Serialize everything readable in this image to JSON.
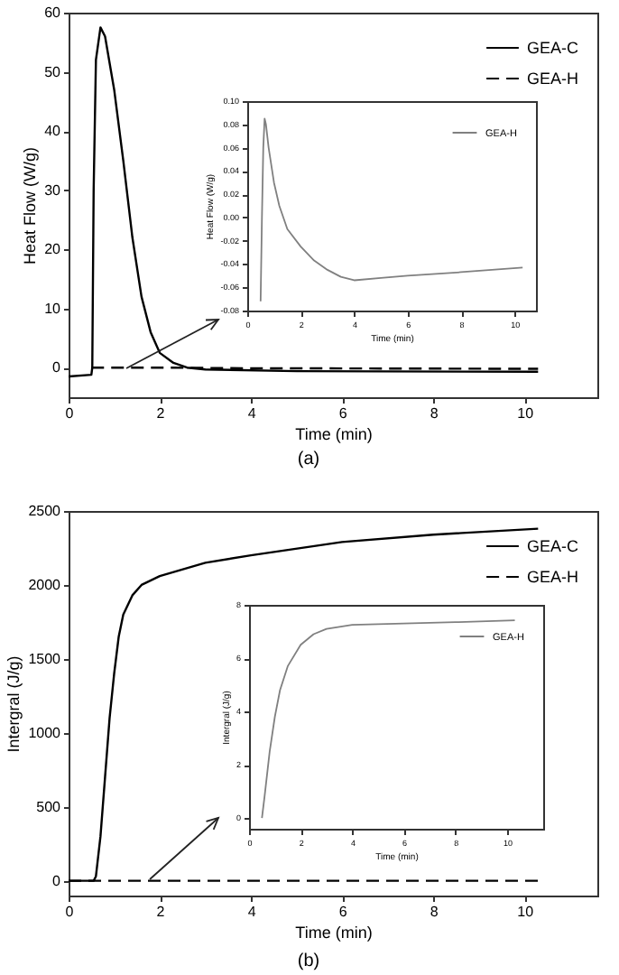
{
  "chart_data": [
    {
      "type": "line",
      "xlabel": "Time (min)",
      "ylabel": "Heat Flow (W/g)",
      "xlim": [
        0,
        11.6
      ],
      "ylim": [
        -5,
        60
      ],
      "xticks": [
        0,
        2,
        4,
        6,
        8,
        10
      ],
      "yticks": [
        0,
        10,
        20,
        30,
        40,
        50,
        60
      ],
      "legend": "top right",
      "annotations": [
        "(a)"
      ],
      "series": [
        {
          "name": "GEA-C",
          "color": "#000000",
          "line_style": "solid",
          "x": [
            0,
            0.5,
            0.52,
            0.55,
            0.6,
            0.7,
            0.8,
            1.0,
            1.2,
            1.4,
            1.6,
            1.8,
            2.0,
            2.3,
            2.6,
            3,
            5,
            10.3
          ],
          "values": [
            -1.5,
            -1.2,
            0,
            30,
            52,
            57.5,
            56,
            47,
            35,
            22,
            12,
            6,
            2.5,
            0.8,
            0,
            -0.3,
            -0.6,
            -0.7
          ]
        },
        {
          "name": "GEA-H",
          "color": "#000000",
          "line_style": "dashed",
          "x": [
            0.5,
            2,
            4,
            10.3
          ],
          "values": [
            0,
            0,
            -0.1,
            -0.2
          ]
        }
      ]
    },
    {
      "type": "line",
      "xlabel": "Time (min)",
      "ylabel": "Heat Flow (W/g)",
      "xlim": [
        0,
        10.8
      ],
      "ylim": [
        -0.08,
        0.1
      ],
      "xticks": [
        0,
        2,
        4,
        6,
        8,
        10
      ],
      "yticks": [
        {
          "value": -0.08,
          "label": "-0.08"
        },
        {
          "value": -0.06,
          "label": "-0.06"
        },
        {
          "value": -0.04,
          "label": "-0.04"
        },
        {
          "value": -0.02,
          "label": "-0.02"
        },
        {
          "value": 0,
          "label": "0.00"
        },
        {
          "value": 0.02,
          "label": "0.02"
        },
        {
          "value": 0.04,
          "label": "0.04"
        },
        {
          "value": 0.06,
          "label": "0.06"
        },
        {
          "value": 0.08,
          "label": "0.08"
        },
        {
          "value": 0.1,
          "label": "0.10"
        }
      ],
      "legend": "top right",
      "series": [
        {
          "name": "GEA-H",
          "color": "#808080",
          "line_style": "solid",
          "x": [
            0.5,
            0.55,
            0.6,
            0.65,
            0.7,
            0.8,
            1,
            1.2,
            1.5,
            2,
            2.5,
            3,
            3.5,
            4,
            5,
            6,
            8,
            10.3
          ],
          "values": [
            -0.072,
            0,
            0.06,
            0.085,
            0.08,
            0.06,
            0.03,
            0.01,
            -0.01,
            -0.025,
            -0.037,
            -0.045,
            -0.051,
            -0.054,
            -0.052,
            -0.05,
            -0.047,
            -0.043
          ]
        }
      ]
    },
    {
      "type": "line",
      "xlabel": "Time (min)",
      "ylabel": "Intergral (J/g)",
      "xlim": [
        0,
        11.6
      ],
      "ylim": [
        -100,
        2500
      ],
      "xticks": [
        0,
        2,
        4,
        6,
        8,
        10
      ],
      "yticks": [
        0,
        500,
        1000,
        1500,
        2000,
        2500
      ],
      "legend": "top right",
      "annotations": [
        "(b)"
      ],
      "series": [
        {
          "name": "GEA-C",
          "color": "#000000",
          "line_style": "solid",
          "x": [
            0,
            0.55,
            0.6,
            0.7,
            0.8,
            0.9,
            1.0,
            1.1,
            1.2,
            1.4,
            1.6,
            2,
            3,
            4,
            6,
            8,
            10.3
          ],
          "values": [
            0,
            0,
            30,
            300,
            700,
            1100,
            1400,
            1650,
            1800,
            1930,
            2000,
            2060,
            2150,
            2200,
            2290,
            2340,
            2380
          ]
        },
        {
          "name": "GEA-H",
          "color": "#000000",
          "line_style": "dashed",
          "x": [
            0,
            10.3
          ],
          "values": [
            0,
            0
          ]
        }
      ]
    },
    {
      "type": "line",
      "xlabel": "Time (min)",
      "ylabel": "Intergral (J/g)",
      "xlim": [
        0,
        11.4
      ],
      "ylim": [
        -0.4,
        8
      ],
      "xticks": [
        0,
        2,
        4,
        6,
        8,
        10
      ],
      "yticks": [
        0,
        2,
        4,
        6,
        8
      ],
      "legend": "top right",
      "series": [
        {
          "name": "GEA-H",
          "color": "#808080",
          "line_style": "solid",
          "x": [
            0.5,
            0.6,
            0.8,
            1,
            1.2,
            1.5,
            2,
            2.5,
            3,
            4,
            6,
            8,
            10.3
          ],
          "values": [
            0,
            0.8,
            2.5,
            3.8,
            4.8,
            5.7,
            6.5,
            6.9,
            7.1,
            7.25,
            7.3,
            7.35,
            7.42
          ]
        }
      ]
    }
  ]
}
